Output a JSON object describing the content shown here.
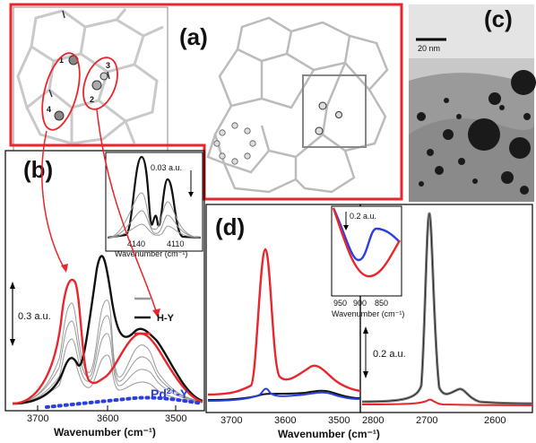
{
  "figure": {
    "panel_a": {
      "label": "(a)",
      "atoms": [
        "1",
        "2",
        "3",
        "4"
      ]
    },
    "panel_b": {
      "label": "(b)",
      "scale": "0.3 a.u.",
      "inset_scale": "0.03 a.u.",
      "inset_xlabel": "Wavenumber (cm⁻¹)",
      "inset_ticks": [
        "4140",
        "4110"
      ],
      "xlabel": "Wavenumber (cm⁻¹)",
      "xticks": [
        "3700",
        "3600",
        "3500"
      ],
      "legend": {
        "hy": "H-Y",
        "pdy_prefix": "Pd",
        "pdy_sup": "2+",
        "pdy_suffix": "-Y"
      }
    },
    "panel_c": {
      "label": "(c)",
      "scale_bar": "20 nm"
    },
    "panel_d": {
      "label": "(d)",
      "scale": "0.2 a.u.",
      "inset_scale": "0.2 a.u.",
      "inset_xlabel": "Wavenumber (cm⁻¹)",
      "inset_ticks": [
        "950",
        "900",
        "850"
      ],
      "xlabel": "Wavenumber (cm⁻¹)",
      "xticks_left": [
        "3700",
        "3600",
        "3500"
      ],
      "xticks_right": [
        "2800",
        "2700",
        "2600"
      ]
    },
    "colors": {
      "red": "#e8262c",
      "black": "#111111",
      "gray": "#8a8a8a",
      "blue": "#2b3ee0",
      "frame": "#e8262c"
    }
  },
  "chart_data": [
    {
      "type": "line",
      "title": "",
      "panel": "(b)",
      "xlabel": "Wavenumber (cm-1)",
      "xlim": [
        3750,
        3450
      ],
      "series": [
        {
          "name": "H-Y",
          "x": [
            3750,
            3700,
            3660,
            3650,
            3630,
            3600,
            3570,
            3550,
            3500,
            3450
          ],
          "y": [
            0.0,
            0.02,
            0.42,
            0.2,
            0.55,
            1.0,
            0.4,
            0.62,
            0.3,
            0.05
          ]
        },
        {
          "name": "",
          "x": [
            3750,
            3700,
            3660,
            3650,
            3630,
            3600,
            3570,
            3550,
            3500,
            3450
          ],
          "y": [
            0.0,
            0.04,
            1.0,
            0.7,
            0.3,
            0.3,
            0.5,
            0.72,
            0.3,
            0.05
          ]
        },
        {
          "name": "Pd2+-Y",
          "x": [
            3750,
            3700,
            3650,
            3600,
            3550,
            3500,
            3450
          ],
          "y": [
            0.0,
            0.03,
            0.05,
            0.06,
            0.07,
            0.04,
            0.02
          ]
        }
      ]
    },
    {
      "type": "line",
      "title": "",
      "panel": "(d)",
      "xlabel": "Wavenumber (cm-1)",
      "xlim": [
        3750,
        2560
      ],
      "series": [
        {
          "name": "",
          "x": [
            3750,
            3700,
            3660,
            3640,
            3620,
            3580,
            3550,
            3500,
            3450
          ],
          "y": [
            0.0,
            0.02,
            0.3,
            1.0,
            0.2,
            0.25,
            0.33,
            0.15,
            0.05
          ]
        },
        {
          "name": "",
          "x": [
            3750,
            3700,
            3640,
            3600,
            3550,
            3500,
            3450
          ],
          "y": [
            0.0,
            0.01,
            0.07,
            0.04,
            0.09,
            0.05,
            0.03
          ]
        },
        {
          "name": "",
          "x": [
            2800,
            2720,
            2690,
            2660,
            2630,
            2600,
            2560
          ],
          "y": [
            0.0,
            0.05,
            1.0,
            0.05,
            0.12,
            0.02,
            0.0
          ]
        }
      ]
    }
  ]
}
